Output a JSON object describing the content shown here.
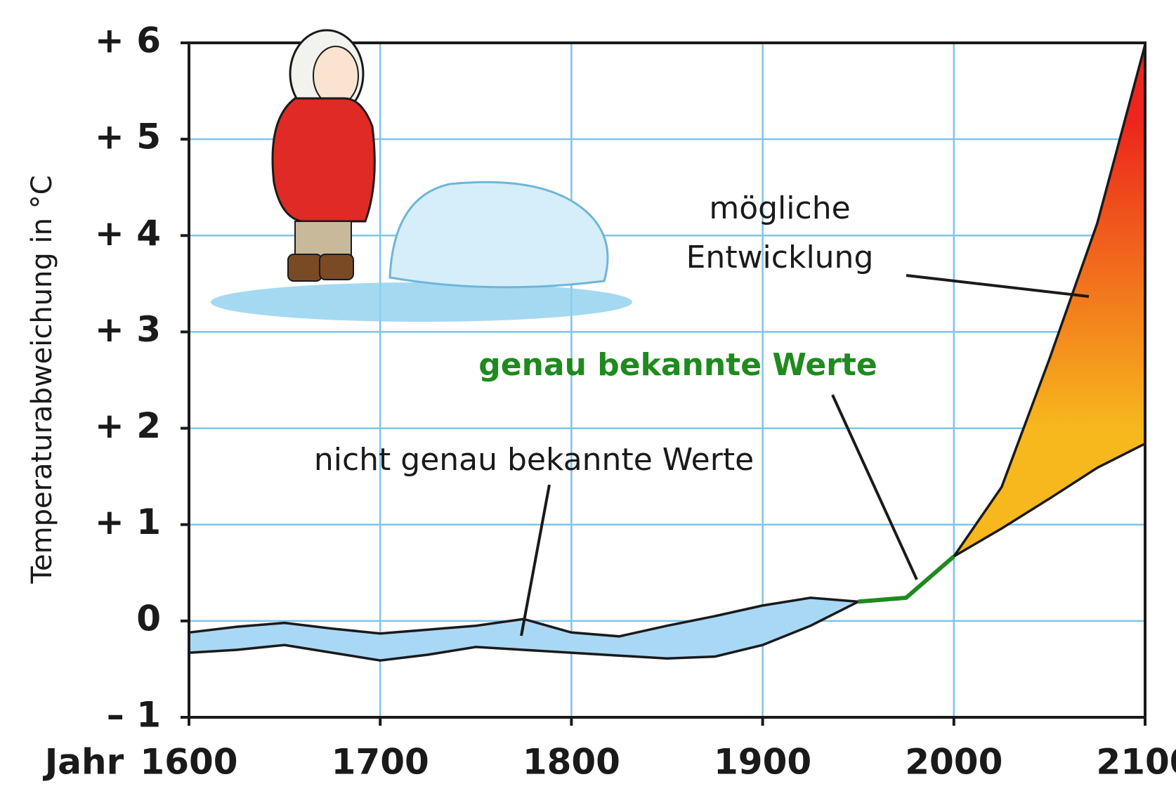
{
  "chart_data": {
    "type": "area",
    "y_label": "Temperaturabweichung in °C",
    "x_label": "Jahr",
    "x": [
      1600,
      1625,
      1650,
      1675,
      1700,
      1725,
      1750,
      1775,
      1800,
      1825,
      1850,
      1875,
      1900,
      1925,
      1950,
      1975,
      2000,
      2025,
      2050,
      2075,
      2100
    ],
    "xlim": [
      1600,
      2100
    ],
    "xticks": [
      1600,
      1700,
      1800,
      1900,
      2000,
      2100
    ],
    "ylim": [
      -1,
      6
    ],
    "yticks": [
      {
        "value": -1,
        "label": "– 1"
      },
      0,
      {
        "value": 1,
        "label": "+ 1"
      },
      {
        "value": 2,
        "label": "+ 2"
      },
      {
        "value": 3,
        "label": "+ 3"
      },
      {
        "value": 4,
        "label": "+ 4"
      },
      {
        "value": 5,
        "label": "+ 5"
      },
      {
        "value": 6,
        "label": "+ 6"
      }
    ],
    "grid": true,
    "series": [
      {
        "name": "nicht genau bekannte Werte",
        "color": "#a9d8f5",
        "values": [
          -0.12,
          -0.06,
          -0.02,
          -0.08,
          -0.13,
          -0.09,
          -0.05,
          0.02,
          -0.12,
          -0.16,
          -0.05,
          0.05,
          0.16,
          0.24,
          0.2,
          null,
          null,
          null,
          null,
          null,
          null
        ],
        "lower": [
          -0.33,
          -0.3,
          -0.25,
          -0.33,
          -0.41,
          -0.35,
          -0.27,
          -0.3,
          -0.33,
          -0.36,
          -0.39,
          -0.37,
          -0.25,
          -0.05,
          0.2,
          null,
          null,
          null,
          null,
          null,
          null
        ]
      },
      {
        "name": "genau bekannte Werte",
        "color": "#1f8a1f",
        "values": [
          null,
          null,
          null,
          null,
          null,
          null,
          null,
          null,
          null,
          null,
          null,
          null,
          null,
          null,
          0.2,
          0.24,
          0.67,
          null,
          null,
          null,
          null
        ]
      },
      {
        "name": "mögliche Entwicklung",
        "color": "#f7b81d",
        "gradient_to": "#ec261c",
        "values": [
          null,
          null,
          null,
          null,
          null,
          null,
          null,
          null,
          null,
          null,
          null,
          null,
          null,
          null,
          null,
          null,
          0.67,
          1.39,
          2.72,
          4.13,
          5.98
        ],
        "lower": [
          null,
          null,
          null,
          null,
          null,
          null,
          null,
          null,
          null,
          null,
          null,
          null,
          null,
          null,
          null,
          null,
          0.67,
          0.96,
          1.27,
          1.59,
          1.84
        ]
      }
    ]
  }
}
